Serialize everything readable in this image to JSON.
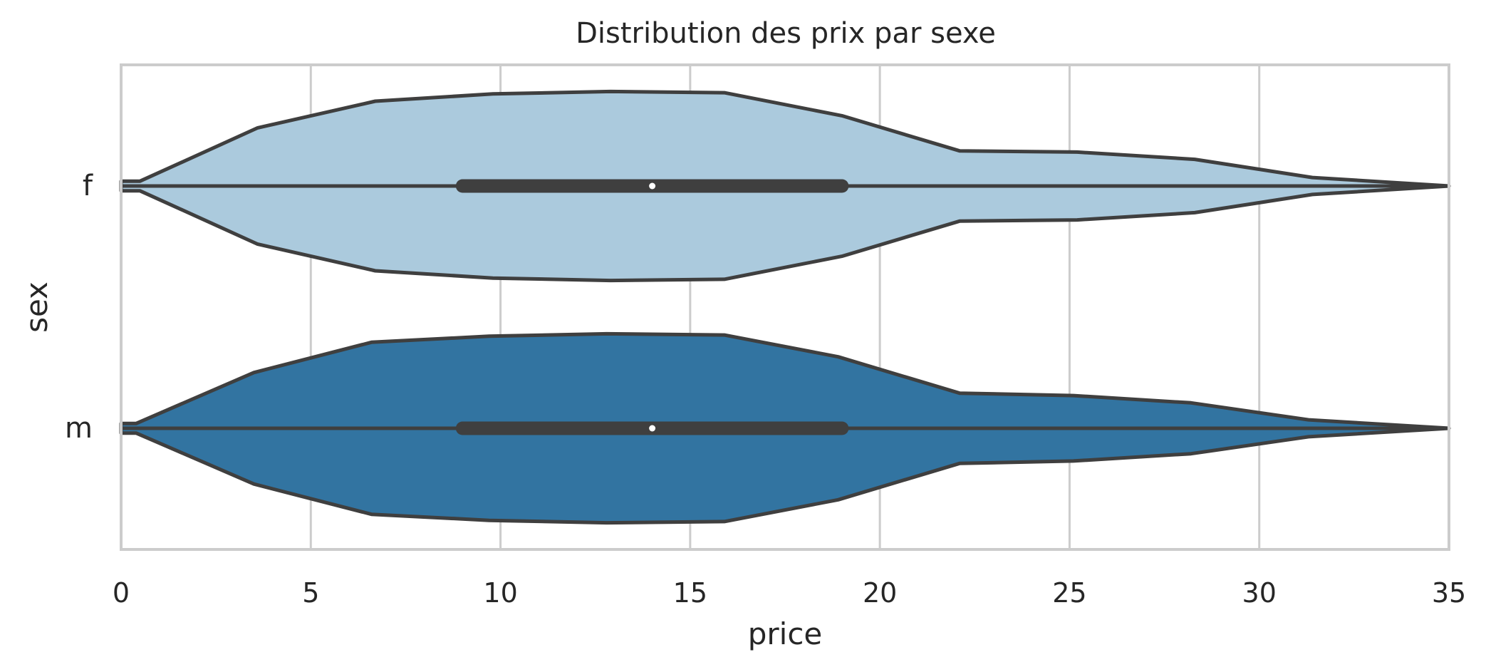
{
  "chart_data": {
    "type": "violin",
    "title": "Distribution des prix par sexe",
    "xlabel": "price",
    "ylabel": "sex",
    "xlim": [
      0,
      35
    ],
    "xticks": [
      "0",
      "5",
      "10",
      "15",
      "20",
      "25",
      "30",
      "35"
    ],
    "categories": [
      "f",
      "m"
    ],
    "grid": "vertical",
    "violins": [
      {
        "category": "f",
        "color": "#abcadd",
        "box": {
          "q1": 9,
          "median": 14,
          "q3": 19,
          "whisker_low": 0,
          "whisker_high": 35
        },
        "density": [
          [
            0,
            0.02
          ],
          [
            0.5,
            0.02
          ],
          [
            3.6,
            0.24
          ],
          [
            6.7,
            0.35
          ],
          [
            9.8,
            0.38
          ],
          [
            12.9,
            0.39
          ],
          [
            15.9,
            0.385
          ],
          [
            19,
            0.29
          ],
          [
            22.1,
            0.145
          ],
          [
            25.2,
            0.14
          ],
          [
            28.3,
            0.11
          ],
          [
            31.4,
            0.035
          ],
          [
            35,
            0.0
          ]
        ]
      },
      {
        "category": "m",
        "color": "#3274a1",
        "box": {
          "q1": 9,
          "median": 14,
          "q3": 19,
          "whisker_low": 0,
          "whisker_high": 35
        },
        "density": [
          [
            0,
            0.02
          ],
          [
            0.4,
            0.02
          ],
          [
            3.5,
            0.23
          ],
          [
            6.6,
            0.355
          ],
          [
            9.7,
            0.38
          ],
          [
            12.8,
            0.39
          ],
          [
            15.9,
            0.385
          ],
          [
            18.9,
            0.295
          ],
          [
            22.1,
            0.145
          ],
          [
            25.1,
            0.135
          ],
          [
            28.2,
            0.105
          ],
          [
            31.3,
            0.035
          ],
          [
            35,
            0.0
          ]
        ]
      }
    ]
  }
}
